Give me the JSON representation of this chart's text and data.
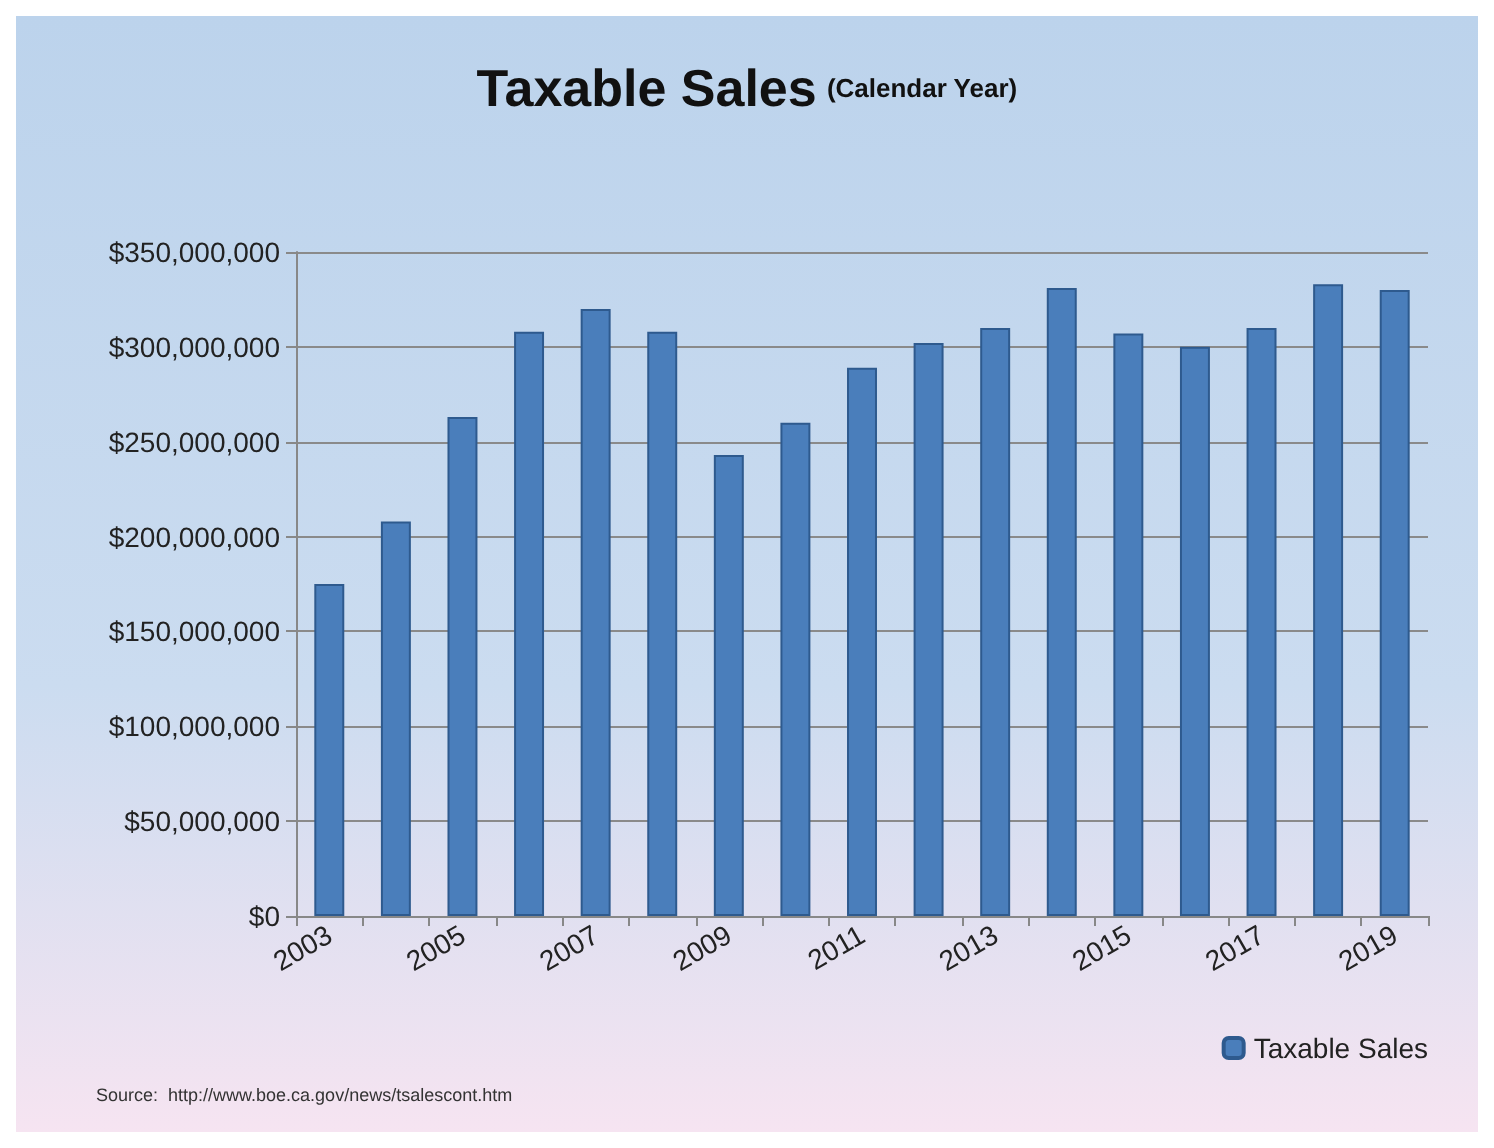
{
  "chart_data": {
    "type": "bar",
    "title": "Taxable Sales",
    "subtitle": "(Calendar Year)",
    "categories": [
      "2003",
      null,
      "2005",
      null,
      "2007",
      null,
      "2009",
      null,
      "2011",
      null,
      "2013",
      null,
      "2015",
      null,
      "2017",
      null,
      "2019"
    ],
    "series": [
      {
        "name": "Taxable Sales",
        "color": "#4a7ebb",
        "values": [
          175000000,
          208000000,
          263000000,
          308000000,
          320000000,
          308000000,
          243000000,
          260000000,
          289000000,
          302000000,
          310000000,
          331000000,
          307000000,
          300000000,
          310000000,
          333000000,
          330000000
        ]
      }
    ],
    "ylim": [
      0,
      350000000
    ],
    "yticks": [
      {
        "value": 0,
        "label": "$0"
      },
      {
        "value": 50000000,
        "label": "$50,000,000"
      },
      {
        "value": 100000000,
        "label": "$100,000,000"
      },
      {
        "value": 150000000,
        "label": "$150,000,000"
      },
      {
        "value": 200000000,
        "label": "$200,000,000"
      },
      {
        "value": 250000000,
        "label": "$250,000,000"
      },
      {
        "value": 300000000,
        "label": "$300,000,000"
      },
      {
        "value": 350000000,
        "label": "$350,000,000"
      }
    ],
    "grid": "y",
    "legend": "bottom right",
    "annotations": [
      "Source:  http://www.boe.ca.gov/news/tsalescont.htm"
    ]
  }
}
